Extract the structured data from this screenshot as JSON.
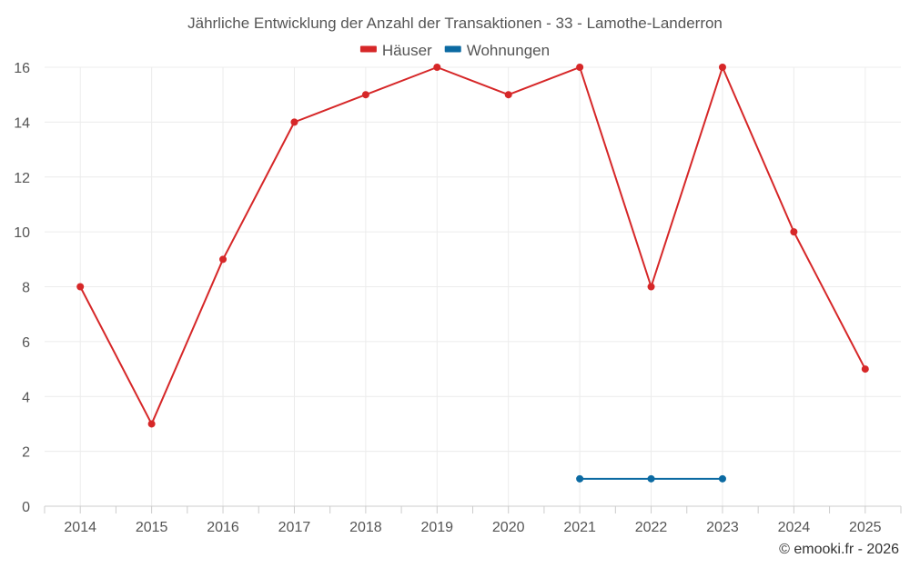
{
  "chart_data": {
    "type": "line",
    "title": "Jährliche Entwicklung der Anzahl der Transaktionen - 33 - Lamothe-Landerron",
    "xlabel": "",
    "ylabel": "",
    "x": [
      "2014",
      "2015",
      "2016",
      "2017",
      "2018",
      "2019",
      "2020",
      "2021",
      "2022",
      "2023",
      "2024",
      "2025"
    ],
    "ylim": [
      0,
      16
    ],
    "yticks": [
      "0",
      "2",
      "4",
      "6",
      "8",
      "10",
      "12",
      "14",
      "16"
    ],
    "grid": true,
    "legend_position": "top-center",
    "series": [
      {
        "name": "Häuser",
        "color": "#d62728",
        "values": [
          8,
          3,
          9,
          14,
          15,
          16,
          15,
          16,
          8,
          16,
          10,
          5
        ]
      },
      {
        "name": "Wohnungen",
        "color": "#0b6aa2",
        "values": [
          null,
          null,
          null,
          null,
          null,
          null,
          null,
          1,
          1,
          1,
          null,
          null
        ]
      }
    ]
  },
  "credit": "© emooki.fr - 2026"
}
